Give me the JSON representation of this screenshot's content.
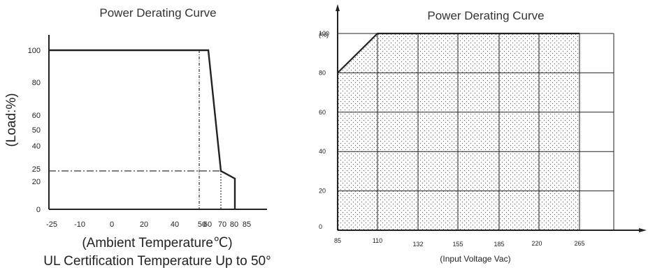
{
  "chart_data": [
    {
      "type": "line",
      "title": "Power Derating Curve",
      "xlabel": "(Ambient Temperature℃)",
      "ylabel": "(Load:%)",
      "caption": "UL Certification Temperature Up to 50°",
      "x_ticks": [
        "-25",
        "-10",
        "0",
        "20",
        "40",
        "50",
        "60",
        "70",
        "80",
        "85"
      ],
      "x_tick_values": [
        -25,
        -10,
        0,
        20,
        40,
        50,
        60,
        70,
        80,
        85
      ],
      "y_ticks": [
        "0",
        "20",
        "25",
        "40",
        "50",
        "60",
        "80",
        "100"
      ],
      "y_tick_values": [
        0,
        20,
        25,
        40,
        50,
        60,
        80,
        100
      ],
      "xlim": [
        -25,
        85
      ],
      "ylim": [
        0,
        100
      ],
      "series": [
        {
          "x": [
            -25,
            50,
            60,
            70,
            70,
            80,
            80
          ],
          "y": [
            100,
            100,
            100,
            25,
            25,
            20,
            0
          ]
        }
      ],
      "reference_lines": {
        "load_25": 25,
        "temp_50": 50,
        "temp_70": 70
      },
      "grid": false
    },
    {
      "type": "area",
      "title": "Power Derating Curve",
      "xlabel": "(Input Voltage Vac)",
      "ylabel": "(%)",
      "x_ticks": [
        "85",
        "110",
        "132",
        "155",
        "185",
        "220",
        "265"
      ],
      "x_tick_values": [
        85,
        110,
        132,
        155,
        185,
        220,
        265
      ],
      "y_ticks": [
        "0",
        "20",
        "40",
        "60",
        "80",
        "100"
      ],
      "y_tick_values": [
        0,
        20,
        40,
        60,
        80,
        100
      ],
      "xlim": [
        85,
        265
      ],
      "ylim": [
        0,
        100
      ],
      "series": [
        {
          "x": [
            85,
            110,
            265
          ],
          "y": [
            80,
            100,
            100
          ]
        }
      ],
      "grid": true,
      "fill": "dotted"
    }
  ]
}
